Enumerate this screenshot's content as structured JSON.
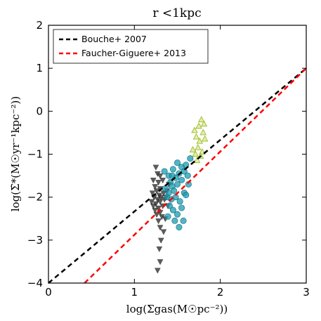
{
  "chart_data": {
    "type": "scatter",
    "title": "r <1kpc",
    "xlabel": "log(Σgas(M☉pc⁻²))",
    "ylabel": "log(Σ̇*(M☉yr⁻¹kpc⁻²))",
    "xlim": [
      0,
      3
    ],
    "ylim": [
      -4,
      2
    ],
    "xticks": [
      "0",
      "1",
      "2",
      "3"
    ],
    "yticks": [
      "−4",
      "−3",
      "−2",
      "−1",
      "0",
      "1",
      "2"
    ],
    "grid": false,
    "legend_position": "top-left",
    "lines": [
      {
        "name": "Bouche+ 2007",
        "color": "#000000",
        "x": [
          0,
          3
        ],
        "y": [
          -4.0,
          1.0
        ]
      },
      {
        "name": "Faucher-Giguere+ 2013",
        "color": "#ff0000",
        "x": [
          0.42,
          3
        ],
        "y": [
          -4.0,
          1.0
        ]
      }
    ],
    "scatter_groups": [
      {
        "marker": "triangle-down",
        "color": "#333333",
        "points": [
          [
            1.25,
            -1.3
          ],
          [
            1.27,
            -1.45
          ],
          [
            1.3,
            -1.5
          ],
          [
            1.22,
            -1.6
          ],
          [
            1.28,
            -1.65
          ],
          [
            1.33,
            -1.6
          ],
          [
            1.24,
            -1.75
          ],
          [
            1.3,
            -1.8
          ],
          [
            1.26,
            -1.85
          ],
          [
            1.21,
            -1.9
          ],
          [
            1.29,
            -1.95
          ],
          [
            1.34,
            -1.9
          ],
          [
            1.23,
            -2.0
          ],
          [
            1.27,
            -2.05
          ],
          [
            1.31,
            -2.0
          ],
          [
            1.2,
            -2.1
          ],
          [
            1.25,
            -2.15
          ],
          [
            1.3,
            -2.1
          ],
          [
            1.35,
            -2.05
          ],
          [
            1.22,
            -2.2
          ],
          [
            1.28,
            -2.25
          ],
          [
            1.33,
            -2.2
          ],
          [
            1.24,
            -2.3
          ],
          [
            1.3,
            -2.35
          ],
          [
            1.26,
            -2.4
          ],
          [
            1.32,
            -2.45
          ],
          [
            1.28,
            -2.55
          ],
          [
            1.36,
            -2.5
          ],
          [
            1.3,
            -2.7
          ],
          [
            1.34,
            -2.8
          ],
          [
            1.31,
            -3.0
          ],
          [
            1.29,
            -3.2
          ],
          [
            1.3,
            -3.5
          ],
          [
            1.27,
            -3.7
          ],
          [
            1.4,
            -1.7
          ],
          [
            1.38,
            -1.85
          ],
          [
            1.37,
            -2.0
          ],
          [
            1.39,
            -2.2
          ]
        ]
      },
      {
        "marker": "circle",
        "color": "#1a9bb0",
        "points": [
          [
            1.35,
            -1.4
          ],
          [
            1.4,
            -1.5
          ],
          [
            1.45,
            -1.35
          ],
          [
            1.5,
            -1.2
          ],
          [
            1.55,
            -1.3
          ],
          [
            1.6,
            -1.25
          ],
          [
            1.65,
            -1.1
          ],
          [
            1.42,
            -1.65
          ],
          [
            1.48,
            -1.55
          ],
          [
            1.52,
            -1.45
          ],
          [
            1.58,
            -1.4
          ],
          [
            1.44,
            -1.75
          ],
          [
            1.5,
            -1.7
          ],
          [
            1.46,
            -1.85
          ],
          [
            1.4,
            -1.9
          ],
          [
            1.55,
            -1.6
          ],
          [
            1.62,
            -1.5
          ],
          [
            1.38,
            -2.0
          ],
          [
            1.43,
            -2.05
          ],
          [
            1.48,
            -2.0
          ],
          [
            1.41,
            -2.2
          ],
          [
            1.45,
            -2.3
          ],
          [
            1.5,
            -2.4
          ],
          [
            1.55,
            -2.25
          ],
          [
            1.47,
            -2.55
          ],
          [
            1.52,
            -2.7
          ],
          [
            1.58,
            -1.9
          ],
          [
            1.63,
            -1.7
          ],
          [
            1.36,
            -1.8
          ],
          [
            1.39,
            -2.45
          ],
          [
            1.44,
            -1.5
          ],
          [
            1.53,
            -2.1
          ],
          [
            1.6,
            -1.95
          ],
          [
            1.57,
            -2.55
          ]
        ]
      },
      {
        "marker": "triangle-up",
        "color": "#c6e05a",
        "points": [
          [
            1.7,
            -0.45
          ],
          [
            1.75,
            -0.35
          ],
          [
            1.78,
            -0.2
          ],
          [
            1.72,
            -0.6
          ],
          [
            1.76,
            -0.7
          ],
          [
            1.8,
            -0.5
          ],
          [
            1.74,
            -0.85
          ],
          [
            1.79,
            -0.95
          ],
          [
            1.71,
            -1.0
          ],
          [
            1.77,
            -1.05
          ],
          [
            1.82,
            -0.65
          ],
          [
            1.73,
            -1.15
          ],
          [
            1.68,
            -0.9
          ],
          [
            1.81,
            -0.3
          ]
        ]
      }
    ]
  }
}
